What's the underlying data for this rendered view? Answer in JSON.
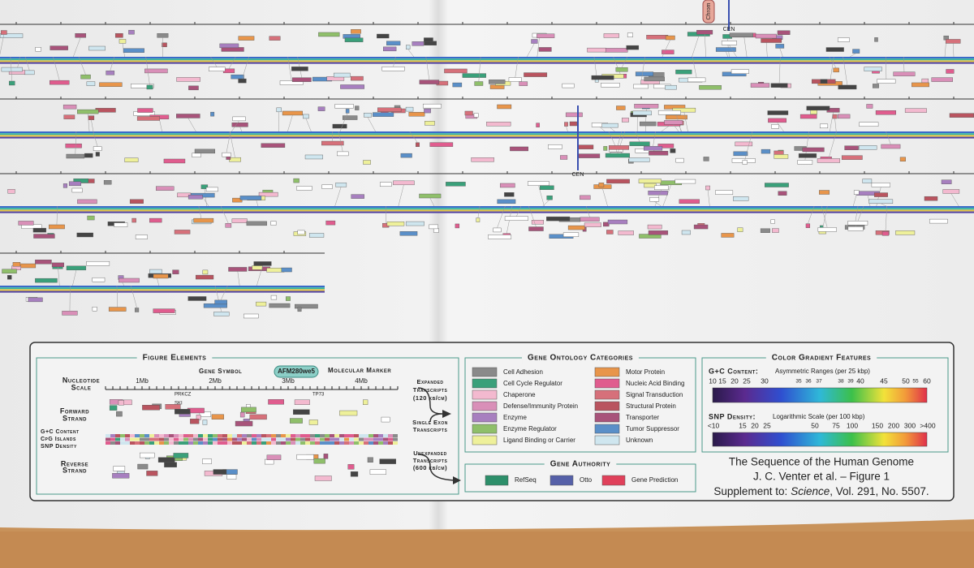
{
  "map_labels": [
    "CEN",
    "CEN",
    "Chrom"
  ],
  "figure_elements": {
    "title": "Figure Elements",
    "gene_symbol": "Gene Symbol",
    "marker": "AFM280we5",
    "marker_label": "Molecular Marker",
    "scale_label": [
      "Nucleotide",
      "Scale"
    ],
    "scale_ticks": [
      "1Mb",
      "2Mb",
      "3Mb",
      "4Mb"
    ],
    "genes": [
      "PRKCZ",
      "SKI",
      "TP73"
    ],
    "forward": [
      "Forward",
      "Strand"
    ],
    "gc": "G+C Content",
    "cpg": "CpG Islands",
    "snp": "SNP Density",
    "reverse": [
      "Reverse",
      "Strand"
    ],
    "expanded": [
      "Expanded",
      "Transcripts",
      "(120 kb/cm)"
    ],
    "single": [
      "Single Exon",
      "Transcripts"
    ],
    "unexpanded": [
      "Unexpanded",
      "Transcripts",
      "(600 kb/cm)"
    ]
  },
  "gene_ontology": {
    "title": "Gene Ontology Categories",
    "categories": [
      {
        "name": "Cell Adhesion",
        "color": "#8a8a8a"
      },
      {
        "name": "Cell Cycle Regulator",
        "color": "#3aa07a"
      },
      {
        "name": "Chaperone",
        "color": "#f3b9cf"
      },
      {
        "name": "Defense/Immunity Protein",
        "color": "#d98fb8"
      },
      {
        "name": "Enzyme",
        "color": "#a77fbf"
      },
      {
        "name": "Enzyme Regulator",
        "color": "#8fbf6a"
      },
      {
        "name": "Ligand Binding or Carrier",
        "color": "#eef09a"
      },
      {
        "name": "Motor Protein",
        "color": "#e8954a"
      },
      {
        "name": "Nucleic Acid Binding",
        "color": "#e05c8e"
      },
      {
        "name": "Signal Transduction",
        "color": "#d6707a"
      },
      {
        "name": "Structural Protein",
        "color": "#b9545f"
      },
      {
        "name": "Transporter",
        "color": "#a8537a"
      },
      {
        "name": "Tumor Suppressor",
        "color": "#5a8fc8"
      },
      {
        "name": "Unknown",
        "color": "#cfe6ef"
      }
    ]
  },
  "gene_authority": {
    "title": "Gene Authority",
    "items": [
      {
        "name": "RefSeq",
        "color": "#2d8f6a"
      },
      {
        "name": "Otto",
        "color": "#5560a8"
      },
      {
        "name": "Gene Prediction",
        "color": "#e0405a"
      }
    ]
  },
  "color_gradient": {
    "title": "Color Gradient Features",
    "gc": {
      "label": "G+C Content:",
      "note": "Asymmetric Ranges (per 25 kbp)",
      "ticks": [
        10,
        15,
        20,
        25,
        30,
        35,
        36,
        37,
        38,
        39,
        40,
        45,
        50,
        55,
        60
      ]
    },
    "snp": {
      "label": "SNP Density:",
      "note": "Logarithmic Scale (per 100 kbp)",
      "ticks": [
        "<10",
        15,
        20,
        25,
        50,
        75,
        100,
        150,
        200,
        300,
        ">400"
      ]
    }
  },
  "caption": {
    "title": "The Sequence of the Human Genome",
    "authors": "J. C. Venter et al. – Figure 1",
    "supplement": "Supplement to:",
    "journal": "Science",
    "volume": ", Vol. 291, No. 5507."
  }
}
